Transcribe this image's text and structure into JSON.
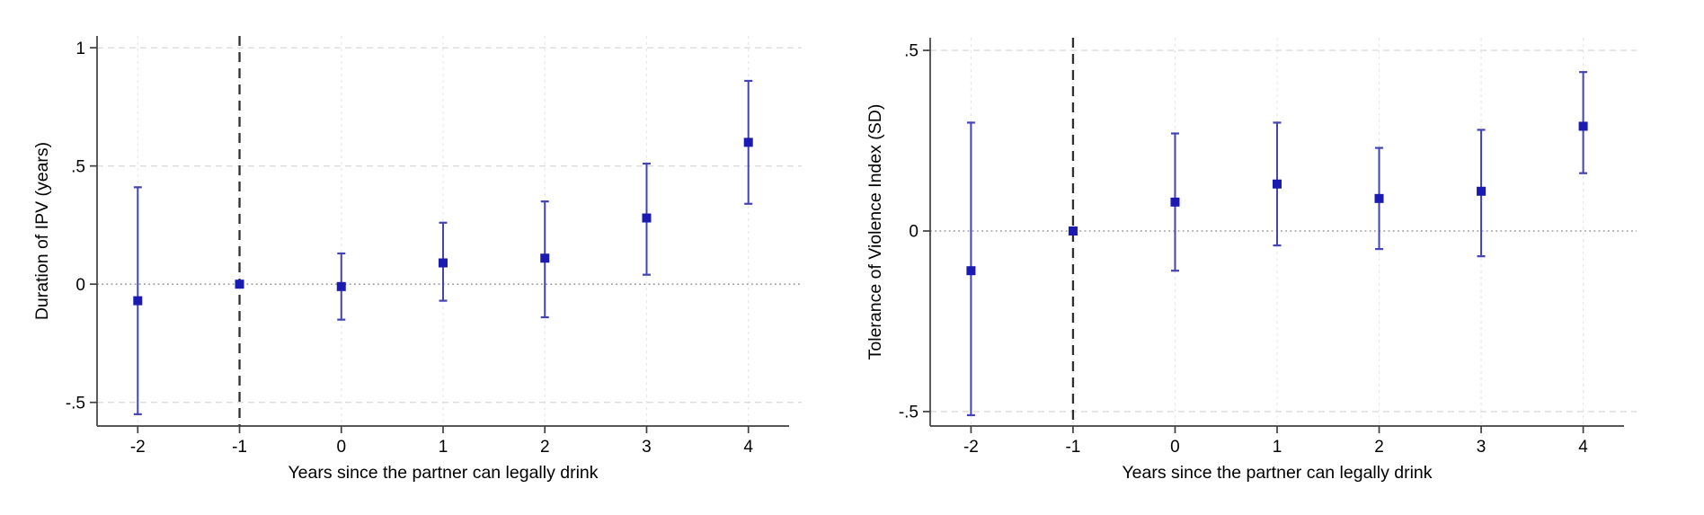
{
  "figure": {
    "xlabel": "Years since the partner can legally drink",
    "colors": {
      "marker": "#1b1bb4",
      "ci": "#4343b8",
      "reference_vline": "#2f2f2f",
      "zero_line": "#9b9b9b",
      "grid_horizontal": "#dcdcdc",
      "grid_vertical": "#e8e8e8",
      "axis": "#3f3f3f",
      "text": "#000000",
      "background": "#ffffff"
    }
  },
  "chart_data": [
    {
      "type": "scatter",
      "title": "",
      "ylabel": "Duration of IPV (years)",
      "xlabel": "Years since the partner can legally drink",
      "x": [
        -2,
        -1,
        0,
        1,
        2,
        3,
        4
      ],
      "x_tick_labels": [
        "-2",
        "-1",
        "0",
        "1",
        "2",
        "3",
        "4"
      ],
      "series": [
        {
          "name": "estimate",
          "values": [
            -0.07,
            0.0,
            -0.01,
            0.09,
            0.11,
            0.28,
            0.6
          ]
        },
        {
          "name": "ci_low",
          "values": [
            -0.55,
            0.0,
            -0.15,
            -0.07,
            -0.14,
            0.04,
            0.34
          ]
        },
        {
          "name": "ci_high",
          "values": [
            0.41,
            0.0,
            0.13,
            0.26,
            0.35,
            0.51,
            0.86
          ]
        }
      ],
      "xlim": [
        -2.4,
        4.4
      ],
      "ylim": [
        -0.6,
        1.05
      ],
      "y_ticks": [
        -0.5,
        0,
        0.5,
        1
      ],
      "y_tick_labels": [
        "-.5",
        "0",
        ".5",
        "1"
      ],
      "vline_x": -1,
      "hline_y": 0,
      "grid": true,
      "legend": "none"
    },
    {
      "type": "scatter",
      "title": "",
      "ylabel": "Tolerance of Violence Index (SD)",
      "xlabel": "Years since the partner can legally drink",
      "x": [
        -2,
        -1,
        0,
        1,
        2,
        3,
        4
      ],
      "x_tick_labels": [
        "-2",
        "-1",
        "0",
        "1",
        "2",
        "3",
        "4"
      ],
      "series": [
        {
          "name": "estimate",
          "values": [
            -0.11,
            0.0,
            0.08,
            0.13,
            0.09,
            0.11,
            0.29
          ]
        },
        {
          "name": "ci_low",
          "values": [
            -0.51,
            0.0,
            -0.11,
            -0.04,
            -0.05,
            -0.07,
            0.16
          ]
        },
        {
          "name": "ci_high",
          "values": [
            0.3,
            0.0,
            0.27,
            0.3,
            0.23,
            0.28,
            0.44
          ]
        }
      ],
      "xlim": [
        -2.4,
        4.4
      ],
      "ylim": [
        -0.54,
        0.535
      ],
      "y_ticks": [
        -0.5,
        0,
        0.5
      ],
      "y_tick_labels": [
        "-.5",
        "0",
        ".5"
      ],
      "vline_x": -1,
      "hline_y": 0,
      "grid": true,
      "legend": "none"
    }
  ]
}
